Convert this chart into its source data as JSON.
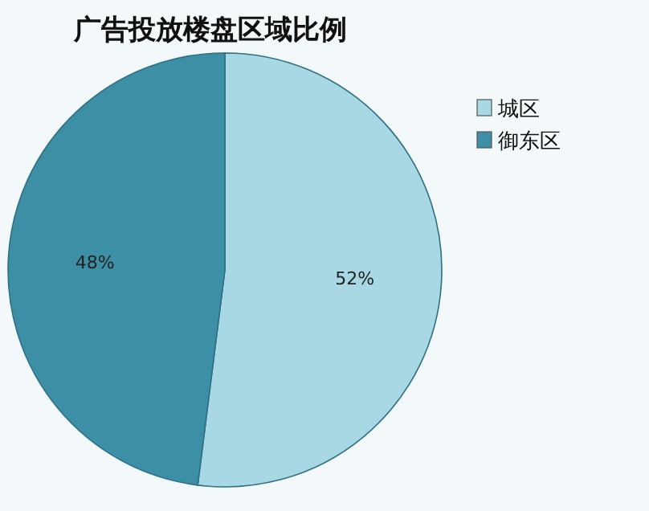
{
  "chart_data": {
    "type": "pie",
    "title": "广告投放楼盘区域比例",
    "categories": [
      "城区",
      "御东区"
    ],
    "values": [
      52,
      48
    ],
    "colors": [
      "#a8d8e3",
      "#3d8fa6"
    ],
    "value_labels": [
      "52%",
      "48%"
    ],
    "legend": "top right"
  }
}
